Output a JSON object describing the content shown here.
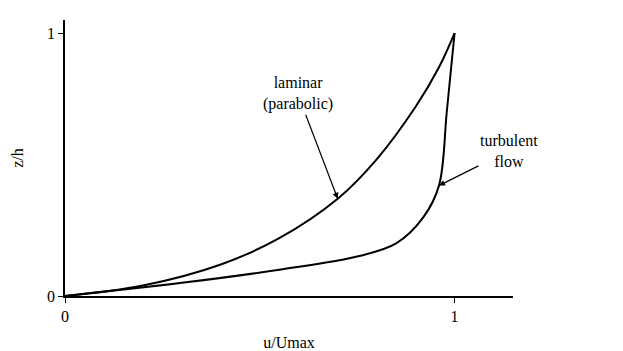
{
  "chart_data": {
    "type": "line",
    "x_label": "u/Umax",
    "y_label": "z/h",
    "xlim": [
      0,
      1.15
    ],
    "ylim": [
      0,
      1.05
    ],
    "xticks": [
      0,
      1
    ],
    "yticks": [
      0,
      1
    ],
    "grid": false,
    "series": [
      {
        "name": "laminar (parabolic)",
        "color": "#000000",
        "x": [
          0,
          0.2,
          0.4,
          0.55,
          0.7,
          0.8,
          0.9,
          0.96,
          1
        ],
        "values": [
          0,
          0.04,
          0.12,
          0.22,
          0.37,
          0.52,
          0.72,
          0.87,
          1
        ]
      },
      {
        "name": "turbulent flow",
        "color": "#000000",
        "x": [
          0,
          0.3,
          0.55,
          0.75,
          0.85,
          0.92,
          0.96,
          0.98,
          1
        ],
        "values": [
          0,
          0.05,
          0.1,
          0.15,
          0.2,
          0.3,
          0.42,
          0.7,
          1
        ]
      }
    ]
  }
}
